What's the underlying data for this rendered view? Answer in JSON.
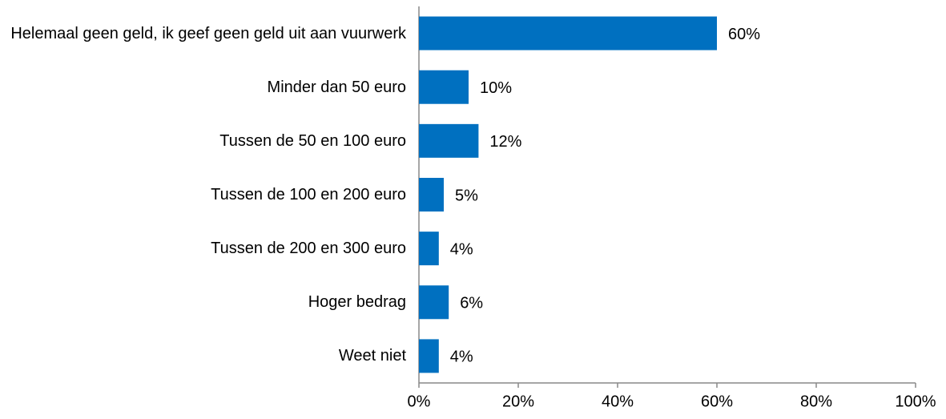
{
  "chart_data": {
    "type": "bar",
    "orientation": "horizontal",
    "categories": [
      "Helemaal geen geld, ik geef geen geld uit aan vuurwerk",
      "Minder dan 50 euro",
      "Tussen de 50 en 100 euro",
      "Tussen de 100 en 200 euro",
      "Tussen de 200 en 300 euro",
      "Hoger bedrag",
      "Weet niet"
    ],
    "values": [
      60,
      10,
      12,
      5,
      4,
      6,
      4
    ],
    "value_labels": [
      "60%",
      "10%",
      "12%",
      "5%",
      "4%",
      "6%",
      "4%"
    ],
    "color": "#0070c0",
    "xlim": [
      0,
      100
    ],
    "xticks": [
      {
        "value": 0,
        "label": "0%"
      },
      {
        "value": 20,
        "label": "20%"
      },
      {
        "value": 40,
        "label": "40%"
      },
      {
        "value": 60,
        "label": "60%"
      },
      {
        "value": 80,
        "label": "80%"
      },
      {
        "value": 100,
        "label": "100%"
      }
    ],
    "grid": false
  }
}
